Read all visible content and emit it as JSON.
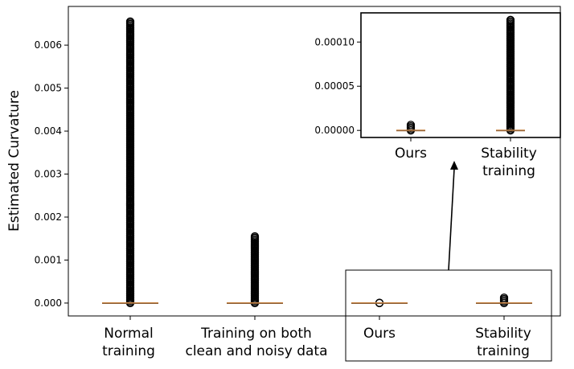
{
  "chart_data": [
    {
      "type": "box",
      "ylabel": "Estimated Curvature",
      "ylim": [
        -0.0003,
        0.0069
      ],
      "yticks": [
        "0.000",
        "0.001",
        "0.002",
        "0.003",
        "0.004",
        "0.005",
        "0.006"
      ],
      "yticks_values": [
        0,
        0.001,
        0.002,
        0.003,
        0.004,
        0.005,
        0.006
      ],
      "categories": [
        {
          "line1": "Normal",
          "line2": "training"
        },
        {
          "line1": "Training on both",
          "line2": "clean and noisy data"
        },
        {
          "line1": "Ours",
          "line2": ""
        },
        {
          "line1": "Stability",
          "line2": "training"
        }
      ],
      "boxes": [
        {
          "median": 0,
          "q1": 0,
          "q3": 0,
          "outliers_min": 0,
          "outliers_max": 0.00655
        },
        {
          "median": 0,
          "q1": 0,
          "q3": 0,
          "outliers_min": 0,
          "outliers_max": 0.00155
        },
        {
          "median": 0,
          "q1": 0,
          "q3": 0,
          "outliers_min": 0,
          "outliers_max": 6.2e-06
        },
        {
          "median": 0,
          "q1": 0,
          "q3": 0,
          "outliers_min": 0,
          "outliers_max": 0.000125
        }
      ],
      "grid": false
    },
    {
      "type": "box",
      "role": "zoomed-inset",
      "ylim": [
        -8e-06,
        0.000133
      ],
      "yticks": [
        "0.00000",
        "0.00005",
        "0.00010"
      ],
      "yticks_values": [
        0,
        5e-05,
        0.0001
      ],
      "categories": [
        {
          "line1": "Ours",
          "line2": ""
        },
        {
          "line1": "Stability",
          "line2": "training"
        }
      ],
      "boxes": [
        {
          "median": 0,
          "q1": 0,
          "q3": 0,
          "outliers_min": 0,
          "outliers_max": 6.2e-06
        },
        {
          "median": 0,
          "q1": 0,
          "q3": 0,
          "outliers_min": 0,
          "outliers_max": 0.000125
        }
      ],
      "grid": false
    }
  ],
  "colors": {
    "median_line": "#c8874a",
    "outlier_edge": "#000000",
    "axis": "#000000",
    "background": "#ffffff"
  }
}
